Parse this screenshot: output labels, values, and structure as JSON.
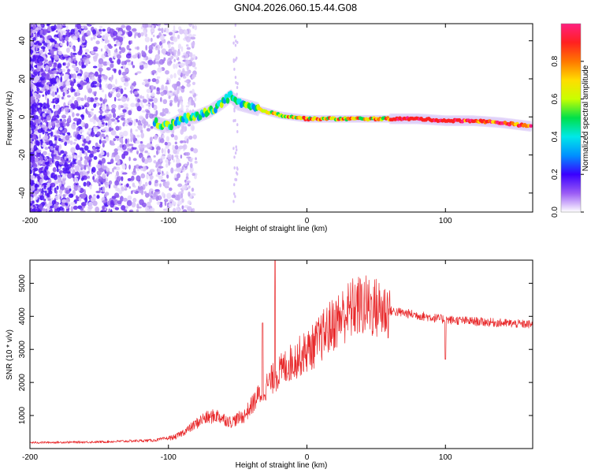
{
  "title": "GN04.2026.060.15.44.G08",
  "colors": {
    "snr_line": "#e8282a",
    "axis": "#000000"
  },
  "chart_data": [
    {
      "type": "heatmap",
      "name": "spectrogram",
      "xlabel": "Height of straight line (km)",
      "ylabel": "Frequency (Hz)",
      "xlim": [
        -200,
        163
      ],
      "ylim": [
        -50,
        49
      ],
      "xticks": [
        -200,
        -100,
        0,
        100
      ],
      "yticks": [
        -40,
        -20,
        0,
        20,
        40
      ],
      "ridge": {
        "x": [
          -110,
          -100,
          -90,
          -80,
          -70,
          -60,
          -55,
          -50,
          -45,
          -40,
          -30,
          -20,
          -10,
          0,
          20,
          50,
          80,
          100,
          120,
          140,
          162
        ],
        "y": [
          -3,
          -5,
          -1,
          0,
          3,
          8,
          11,
          7,
          6,
          5,
          3,
          1,
          0,
          -1,
          -1,
          -1,
          -1,
          -2,
          -2,
          -3,
          -5
        ]
      },
      "colorbar": {
        "label": "Normalized spectral amplitude",
        "ticks": [
          0.0,
          0.2,
          0.4,
          0.6,
          0.8
        ],
        "range": [
          0,
          1
        ],
        "colormap": [
          "#ffffff",
          "#9b5cf5",
          "#3a00ff",
          "#0090ff",
          "#00e8e8",
          "#00e04a",
          "#c8ff00",
          "#ffdd00",
          "#ff7700",
          "#ff2020",
          "#ff2080"
        ]
      }
    },
    {
      "type": "line",
      "name": "snr",
      "xlabel": "Height of straight line (km)",
      "ylabel": "SNR (10 * v/v)",
      "xlim": [
        -200,
        163
      ],
      "ylim": [
        0,
        5700
      ],
      "xticks": [
        -200,
        -100,
        0,
        100
      ],
      "yticks": [
        1000,
        2000,
        3000,
        4000,
        5000
      ],
      "envelope": {
        "x": [
          -200,
          -150,
          -110,
          -95,
          -85,
          -75,
          -65,
          -55,
          -45,
          -35,
          -25,
          -15,
          -5,
          5,
          15,
          25,
          35,
          45,
          55,
          70,
          85,
          100,
          120,
          140,
          163
        ],
        "y": [
          180,
          200,
          250,
          350,
          600,
          900,
          1000,
          800,
          1000,
          1600,
          2100,
          2500,
          2800,
          3100,
          3600,
          4000,
          4300,
          4300,
          4200,
          4100,
          4000,
          3900,
          3850,
          3800,
          3750
        ]
      },
      "spikes": [
        {
          "x": -23,
          "y": 5700
        },
        {
          "x": -32,
          "y": 3800
        },
        {
          "x": 100,
          "y": 2700
        }
      ]
    }
  ]
}
